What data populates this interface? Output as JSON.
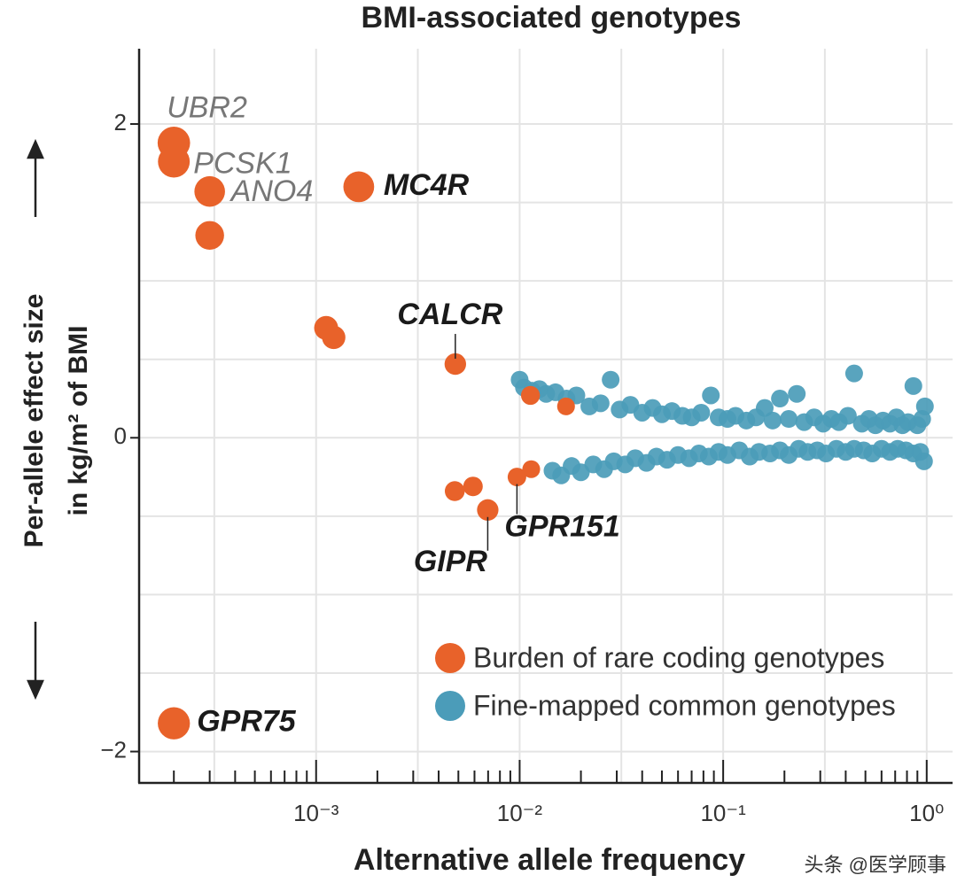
{
  "chart_data": {
    "type": "scatter",
    "title": "BMI-associated genotypes",
    "x_label": "Alternative allele frequency",
    "y_label": [
      "Per-allele effect size",
      "in kg/m² of BMI"
    ],
    "watermark": "头条 @医学顾事",
    "xscale": "log",
    "grid": true,
    "legend": "lower right",
    "xlim": [
      0.000135,
      1.34
    ],
    "ylim": [
      -2.2,
      2.48
    ],
    "xticks": [
      {
        "value": 0.001,
        "label": "10⁻³"
      },
      {
        "value": 0.01,
        "label": "10⁻²"
      },
      {
        "value": 0.1,
        "label": "10⁻¹"
      },
      {
        "value": 1,
        "label": "10⁰"
      }
    ],
    "xminorticks": [
      0.0002,
      0.0003,
      0.0004,
      0.0005,
      0.0006,
      0.0007,
      0.0008,
      0.0009,
      0.002,
      0.003,
      0.004,
      0.005,
      0.006,
      0.007,
      0.008,
      0.009,
      0.02,
      0.03,
      0.04,
      0.05,
      0.06,
      0.07,
      0.08,
      0.09,
      0.2,
      0.3,
      0.4,
      0.5,
      0.6,
      0.7,
      0.8,
      0.9
    ],
    "xgrid": [
      0.000316,
      0.001,
      0.00316,
      0.01,
      0.0316,
      0.1,
      0.316,
      1
    ],
    "yticks": [
      {
        "value": -2,
        "label": "−2"
      },
      0,
      2
    ],
    "ygrid": [
      -2,
      -1.5,
      -1,
      -0.5,
      0,
      0.5,
      1,
      1.5,
      2
    ],
    "series": [
      {
        "name": "Fine-mapped common genotypes",
        "color": "#4b9cb9",
        "x": [
          0.01,
          0.0105,
          0.0115,
          0.0125,
          0.0135,
          0.015,
          0.017,
          0.019,
          0.022,
          0.025,
          0.028,
          0.031,
          0.035,
          0.04,
          0.045,
          0.05,
          0.056,
          0.063,
          0.07,
          0.078,
          0.087,
          0.095,
          0.105,
          0.115,
          0.13,
          0.145,
          0.16,
          0.175,
          0.19,
          0.21,
          0.23,
          0.25,
          0.28,
          0.31,
          0.34,
          0.37,
          0.41,
          0.44,
          0.48,
          0.52,
          0.56,
          0.61,
          0.66,
          0.71,
          0.76,
          0.81,
          0.86,
          0.9,
          0.95,
          0.98,
          0.0145,
          0.016,
          0.018,
          0.02,
          0.023,
          0.026,
          0.029,
          0.033,
          0.037,
          0.042,
          0.047,
          0.053,
          0.06,
          0.068,
          0.076,
          0.085,
          0.095,
          0.105,
          0.12,
          0.135,
          0.15,
          0.17,
          0.19,
          0.21,
          0.235,
          0.26,
          0.29,
          0.32,
          0.36,
          0.4,
          0.44,
          0.49,
          0.54,
          0.6,
          0.66,
          0.72,
          0.79,
          0.86,
          0.93,
          0.97
        ],
        "values": [
          0.37,
          0.32,
          0.3,
          0.31,
          0.28,
          0.29,
          0.25,
          0.27,
          0.2,
          0.22,
          0.37,
          0.18,
          0.21,
          0.16,
          0.19,
          0.15,
          0.17,
          0.14,
          0.13,
          0.16,
          0.27,
          0.13,
          0.12,
          0.14,
          0.11,
          0.13,
          0.19,
          0.11,
          0.25,
          0.12,
          0.28,
          0.1,
          0.13,
          0.09,
          0.12,
          0.1,
          0.14,
          0.41,
          0.09,
          0.12,
          0.08,
          0.11,
          0.09,
          0.13,
          0.08,
          0.1,
          0.33,
          0.08,
          0.12,
          0.2,
          -0.21,
          -0.24,
          -0.18,
          -0.22,
          -0.17,
          -0.2,
          -0.15,
          -0.17,
          -0.13,
          -0.16,
          -0.12,
          -0.14,
          -0.11,
          -0.13,
          -0.1,
          -0.12,
          -0.09,
          -0.11,
          -0.08,
          -0.12,
          -0.09,
          -0.1,
          -0.08,
          -0.11,
          -0.07,
          -0.09,
          -0.08,
          -0.1,
          -0.07,
          -0.09,
          -0.07,
          -0.08,
          -0.1,
          -0.07,
          -0.09,
          -0.07,
          -0.08,
          -0.1,
          -0.09,
          -0.15
        ]
      },
      {
        "name": "Burden of rare coding genotypes",
        "color": "#e8622a",
        "x": [
          0.0002,
          0.0002,
          0.0003,
          0.0003,
          0.00162,
          0.00112,
          0.00122,
          0.00483,
          0.0113,
          0.0169,
          0.0048,
          0.0059,
          0.00697,
          0.0097,
          0.0114,
          0.0002
        ],
        "values": [
          1.88,
          1.76,
          1.57,
          1.29,
          1.6,
          0.7,
          0.64,
          0.47,
          0.27,
          0.2,
          -0.34,
          -0.31,
          -0.46,
          -0.25,
          -0.2,
          -1.82
        ],
        "point_labels": [
          "UBR2",
          "PCSK1",
          "ANO4",
          null,
          "MC4R",
          null,
          null,
          "CALCR",
          null,
          null,
          null,
          null,
          "GIPR",
          "GPR151",
          null,
          "GPR75"
        ]
      }
    ]
  }
}
